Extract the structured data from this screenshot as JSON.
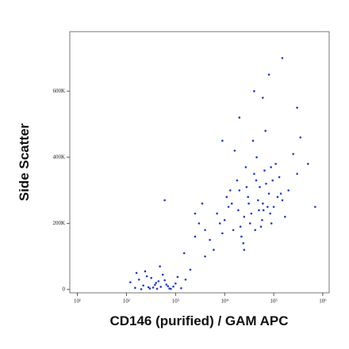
{
  "chart_data": {
    "type": "scatter",
    "x_label": "CD146 (purified) / GAM APC",
    "y_label": "Side Scatter",
    "x_scale": "log",
    "color": "#1f3cc9",
    "xlim": [
      7,
      1350000
    ],
    "ylim": [
      -10000,
      780000
    ],
    "xticks": [
      {
        "value": 10,
        "label": "10¹"
      },
      {
        "value": 100,
        "label": "10²"
      },
      {
        "value": 1000,
        "label": "10³"
      },
      {
        "value": 10000,
        "label": "10⁴"
      },
      {
        "value": 100000,
        "label": "10⁵"
      },
      {
        "value": 1000000,
        "label": "10⁶"
      }
    ],
    "yticks": [
      0,
      {
        "value": 200000,
        "label": "200K"
      },
      {
        "value": 400000,
        "label": "400K"
      },
      {
        "value": 600000,
        "label": "600K"
      }
    ],
    "x": [
      150,
      220,
      300,
      400,
      500,
      650,
      800,
      180,
      260,
      350,
      450,
      700,
      1000,
      1300,
      120,
      240,
      320,
      420,
      550,
      900,
      1600,
      2000,
      200,
      380,
      480,
      600,
      280,
      160,
      750,
      1100,
      5000,
      8000,
      12000,
      15000,
      20000,
      25000,
      30000,
      40000,
      50000,
      60000,
      70000,
      90000,
      110000,
      150000,
      200000,
      6000,
      10000,
      18000,
      22000,
      35000,
      45000,
      55000,
      80000,
      100000,
      130000,
      7000,
      9000,
      14000,
      28000,
      33000,
      48000,
      65000,
      85000,
      120000,
      4000,
      3500,
      16000,
      24000,
      38000,
      52000,
      75000,
      95000,
      170000,
      250000,
      11000,
      19000,
      27000,
      42000,
      58000,
      68000,
      3000,
      2500,
      13000,
      21000,
      31000,
      44000,
      62000,
      88000,
      140000,
      300000,
      600,
      2500,
      1500,
      40000,
      80000,
      150000,
      300000,
      500000,
      20000,
      60000,
      9000,
      4000,
      350000,
      25000,
      700000
    ],
    "values": [
      5000,
      12000,
      3000,
      20000,
      8000,
      15000,
      2000,
      30000,
      40000,
      6000,
      25000,
      10000,
      18000,
      4000,
      22000,
      55000,
      35000,
      2000,
      45000,
      9000,
      30000,
      60000,
      1000,
      14000,
      70000,
      28000,
      7000,
      50000,
      3000,
      38000,
      150000,
      200000,
      250000,
      180000,
      300000,
      220000,
      280000,
      350000,
      240000,
      260000,
      320000,
      200000,
      380000,
      270000,
      300000,
      120000,
      210000,
      330000,
      160000,
      230000,
      400000,
      190000,
      290000,
      250000,
      340000,
      230000,
      170000,
      260000,
      310000,
      200000,
      270000,
      360000,
      230000,
      280000,
      180000,
      260000,
      420000,
      140000,
      450000,
      310000,
      250000,
      330000,
      220000,
      410000,
      280000,
      240000,
      370000,
      180000,
      210000,
      480000,
      200000,
      230000,
      300000,
      190000,
      260000,
      330000,
      240000,
      370000,
      290000,
      350000,
      270000,
      160000,
      110000,
      600000,
      650000,
      700000,
      550000,
      380000,
      520000,
      580000,
      450000,
      100000,
      460000,
      120000,
      250000
    ]
  }
}
